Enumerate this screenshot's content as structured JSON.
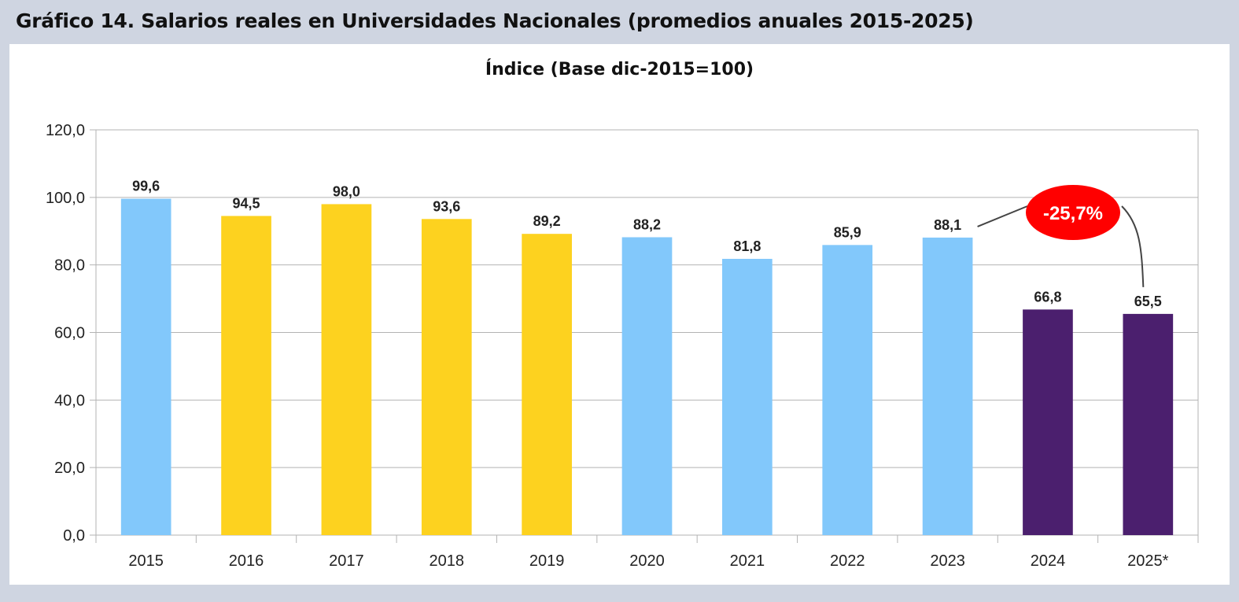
{
  "figure_title": "Gráfico 14.  Salarios reales en Universidades Nacionales (promedios anuales 2015-2025)",
  "chart_data": {
    "type": "bar",
    "title": "Índice (Base dic-2015=100)",
    "xlabel": "",
    "ylabel": "",
    "categories": [
      "2015",
      "2016",
      "2017",
      "2018",
      "2019",
      "2020",
      "2021",
      "2022",
      "2023",
      "2024",
      "2025*"
    ],
    "values": [
      99.6,
      94.5,
      98.0,
      93.6,
      89.2,
      88.2,
      81.8,
      85.9,
      88.1,
      66.8,
      65.5
    ],
    "data_labels": [
      "99,6",
      "94,5",
      "98,0",
      "93,6",
      "89,2",
      "88,2",
      "81,8",
      "85,9",
      "88,1",
      "66,8",
      "65,5"
    ],
    "bar_colors": [
      "#82c8fb",
      "#fdd21f",
      "#fdd21f",
      "#fdd21f",
      "#fdd21f",
      "#82c8fb",
      "#82c8fb",
      "#82c8fb",
      "#82c8fb",
      "#4b1f6e",
      "#4b1f6e"
    ],
    "ylim": [
      0,
      120
    ],
    "yticks": [
      0,
      20,
      40,
      60,
      80,
      100,
      120
    ],
    "ytick_labels": [
      "0,0",
      "20,0",
      "40,0",
      "60,0",
      "80,0",
      "100,0",
      "120,0"
    ],
    "grid": true,
    "legend": "none",
    "annotation": {
      "text": "-25,7%",
      "from_category": "2023",
      "to_category": "2025*",
      "color": "#ff0000"
    }
  }
}
